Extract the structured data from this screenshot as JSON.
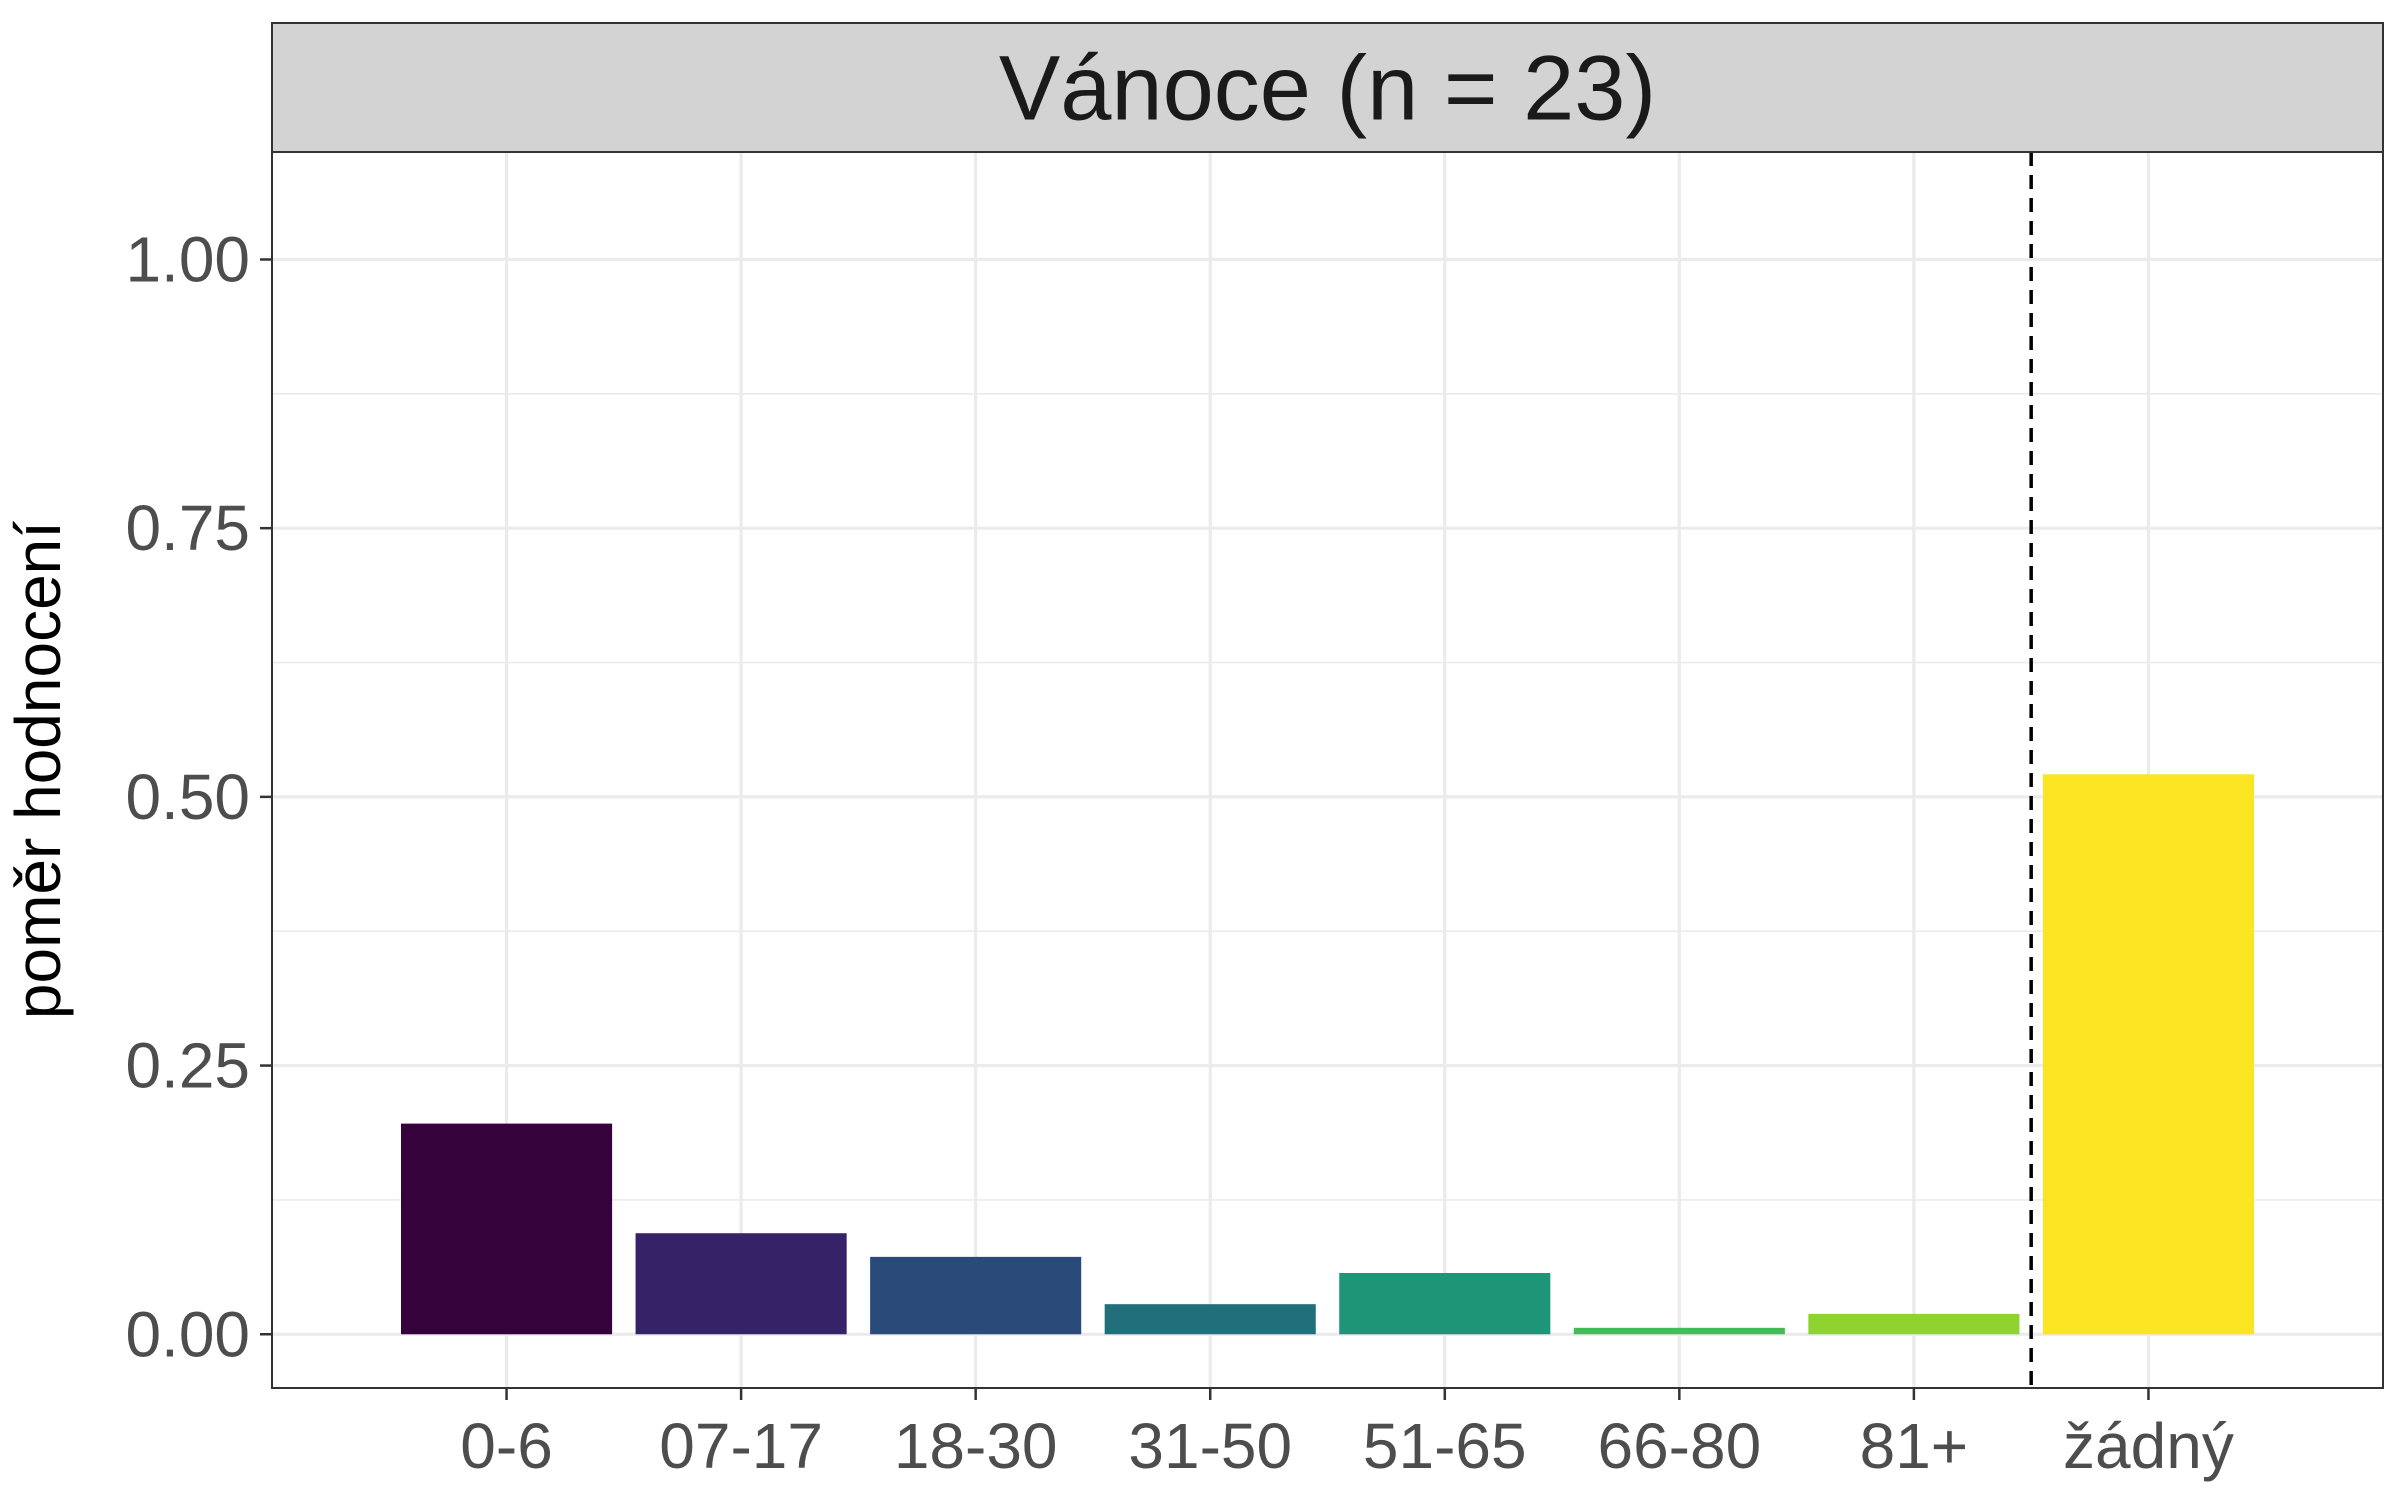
{
  "chart_data": {
    "type": "bar",
    "panel_title": "Vánoce (n = 23)",
    "xlabel": "",
    "ylabel": "poměr hodnocení",
    "categories": [
      "0-6",
      "07-17",
      "18-30",
      "31-50",
      "51-65",
      "66-80",
      "81+",
      "žádný"
    ],
    "values": [
      0.196,
      0.094,
      0.072,
      0.028,
      0.057,
      0.006,
      0.019,
      0.521
    ],
    "colors": [
      "#35023B",
      "#362266",
      "#2A4A7A",
      "#216F7A",
      "#1F9577",
      "#45BA58",
      "#8FD42E",
      "#FBE422"
    ],
    "ylim": [
      -0.05,
      1.1
    ],
    "yticks": [
      0,
      0.25,
      0.5,
      0.75,
      1.0
    ],
    "ytick_labels": [
      "0.00",
      "0.25",
      "0.50",
      "0.75",
      "1.00"
    ],
    "separator_after_category": "81+",
    "grid": true,
    "theme": {
      "strip_fill": "#D3D3D3",
      "grid_color": "#EBEBEB",
      "panel_border": "#333333"
    }
  }
}
